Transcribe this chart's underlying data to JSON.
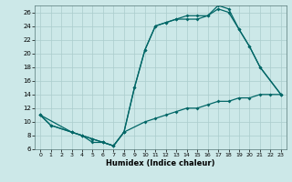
{
  "xlabel": "Humidex (Indice chaleur)",
  "bg_color": "#cce8e8",
  "grid_color": "#aacccc",
  "line_color": "#006666",
  "ylim": [
    6,
    27
  ],
  "xlim": [
    -0.5,
    23.5
  ],
  "yticks": [
    6,
    8,
    10,
    12,
    14,
    16,
    18,
    20,
    22,
    24,
    26
  ],
  "xticks": [
    0,
    1,
    2,
    3,
    4,
    5,
    6,
    7,
    8,
    9,
    10,
    11,
    12,
    13,
    14,
    15,
    16,
    17,
    18,
    19,
    20,
    21,
    22,
    23
  ],
  "line1_x": [
    0,
    1,
    3,
    4,
    5,
    6,
    7,
    8,
    10,
    11,
    12,
    13,
    14,
    15,
    16,
    17,
    18,
    19,
    20,
    21,
    22,
    23
  ],
  "line1_y": [
    11,
    9.5,
    8.5,
    8.0,
    7.5,
    7.0,
    6.5,
    8.5,
    10.0,
    10.5,
    11.0,
    11.5,
    12.0,
    12.0,
    12.5,
    13.0,
    13.0,
    13.5,
    13.5,
    14.0,
    14.0,
    14.0
  ],
  "line2_x": [
    0,
    1,
    3,
    4,
    5,
    6,
    7,
    8,
    9,
    10,
    11,
    12,
    13,
    14,
    15,
    16,
    17,
    18,
    19,
    20,
    21,
    23
  ],
  "line2_y": [
    11,
    9.5,
    8.5,
    8.0,
    7.5,
    7.0,
    6.5,
    8.5,
    15.0,
    20.5,
    24.0,
    24.5,
    25.0,
    25.5,
    25.5,
    25.5,
    27.0,
    26.5,
    23.5,
    21.0,
    18.0,
    14.0
  ],
  "line3_x": [
    0,
    3,
    4,
    5,
    6,
    7,
    8,
    9,
    10,
    11,
    12,
    13,
    14,
    15,
    16,
    17,
    18,
    19,
    20,
    21,
    23
  ],
  "line3_y": [
    11,
    8.5,
    8.0,
    7.0,
    7.0,
    6.5,
    8.5,
    15.0,
    20.5,
    24.0,
    24.5,
    25.0,
    25.0,
    25.0,
    25.5,
    26.5,
    26.0,
    23.5,
    21.0,
    18.0,
    14.0
  ]
}
